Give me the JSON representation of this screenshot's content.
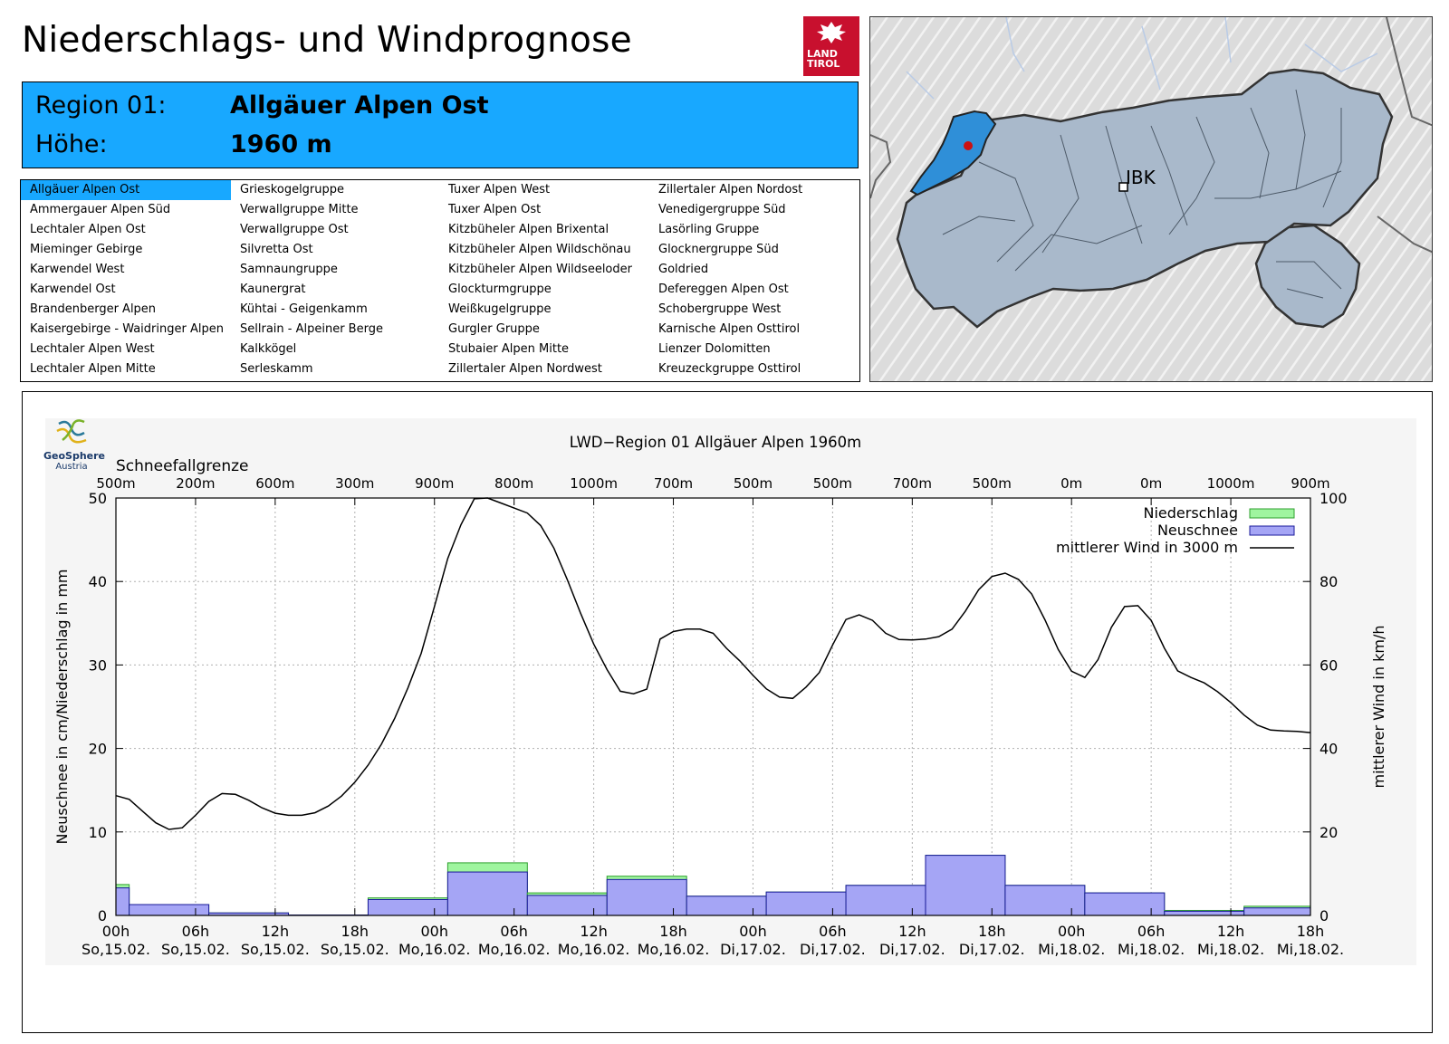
{
  "header": {
    "title": "Niederschlags- und Windprognose",
    "logo_text_1": "LAND",
    "logo_text_2": "TIROL"
  },
  "region_info": {
    "region_label": "Region 01:",
    "region_name": "Allgäuer Alpen Ost",
    "height_label": "Höhe:",
    "height_value": "1960 m"
  },
  "region_list": {
    "selected": "Allgäuer Alpen Ost",
    "columns": [
      [
        "Allgäuer Alpen Ost",
        "Ammergauer Alpen Süd",
        "Lechtaler Alpen Ost",
        "Mieminger Gebirge",
        "Karwendel West",
        "Karwendel Ost",
        "Brandenberger Alpen",
        "Kaisergebirge - Waidringer Alpen",
        "Lechtaler Alpen West",
        "Lechtaler Alpen Mitte"
      ],
      [
        "Grieskogelgruppe",
        "Verwallgruppe Mitte",
        "Verwallgruppe Ost",
        "Silvretta Ost",
        "Samnaungruppe",
        "Kaunergrat",
        "Kühtai - Geigenkamm",
        "Sellrain - Alpeiner Berge",
        "Kalkkögel",
        "Serleskamm"
      ],
      [
        "Tuxer Alpen West",
        "Tuxer Alpen Ost",
        "Kitzbüheler Alpen Brixental",
        "Kitzbüheler Alpen Wildschönau",
        "Kitzbüheler Alpen Wildseeloder",
        "Glockturmgruppe",
        "Weißkugelgruppe",
        "Gurgler Gruppe",
        "Stubaier Alpen Mitte",
        "Zillertaler Alpen Nordwest"
      ],
      [
        "Zillertaler Alpen Nordost",
        "Venedigergruppe Süd",
        "Lasörling Gruppe",
        "Glocknergruppe Süd",
        "Goldried",
        "Defereggen Alpen Ost",
        "Schobergruppe West",
        "Karnische Alpen Osttirol",
        "Lienzer Dolomitten",
        "Kreuzeckgruppe Osttirol"
      ]
    ]
  },
  "map": {
    "city_label": "IBK"
  },
  "branding": {
    "name": "GeoSphere",
    "sub": "Austria"
  },
  "colors": {
    "highlight": "#18a8ff",
    "niederschlag": "#9ff59f",
    "neuschnee": "#a5a5f5",
    "wind": "#000000",
    "logo_red": "#c8102e"
  },
  "chart_data": {
    "type": "bar",
    "title": "LWD−Region 01 Allgäuer Alpen 1960m",
    "ylabel": "Neuschnee in cm/Niederschlag in mm",
    "y2label": "mittlerer Wind in km/h",
    "ylim": [
      0,
      50
    ],
    "y2lim": [
      0,
      100
    ],
    "yticks": [
      0,
      10,
      20,
      30,
      40,
      50
    ],
    "y2ticks": [
      0,
      20,
      40,
      60,
      80,
      100
    ],
    "x_hours": [
      0,
      6,
      12,
      18,
      24,
      30,
      36,
      42,
      48,
      54,
      60,
      66,
      72,
      78,
      84,
      90
    ],
    "x_labels": [
      [
        "00h",
        "So,15.02."
      ],
      [
        "06h",
        "So,15.02."
      ],
      [
        "12h",
        "So,15.02."
      ],
      [
        "18h",
        "So,15.02."
      ],
      [
        "00h",
        "Mo,16.02."
      ],
      [
        "06h",
        "Mo,16.02."
      ],
      [
        "12h",
        "Mo,16.02."
      ],
      [
        "18h",
        "Mo,16.02."
      ],
      [
        "00h",
        "Di,17.02."
      ],
      [
        "06h",
        "Di,17.02."
      ],
      [
        "12h",
        "Di,17.02."
      ],
      [
        "18h",
        "Di,17.02."
      ],
      [
        "00h",
        "Mi,18.02."
      ],
      [
        "06h",
        "Mi,18.02."
      ],
      [
        "12h",
        "Mi,18.02."
      ],
      [
        "18h",
        "Mi,18.02."
      ]
    ],
    "snowline_title": "Schneefallgrenze",
    "snowline_hours": [
      0,
      6,
      12,
      18,
      24,
      30,
      36,
      42,
      48,
      54,
      60,
      66,
      72,
      78,
      84,
      90
    ],
    "snowline_labels": [
      "500m",
      "200m",
      "600m",
      "300m",
      "900m",
      "800m",
      "1000m",
      "700m",
      "500m",
      "500m",
      "700m",
      "500m",
      "0m",
      "0m",
      "1000m",
      "900m"
    ],
    "legend": {
      "niederschlag": "Niederschlag",
      "neuschnee": "Neuschnee",
      "wind": "mittlerer Wind in 3000 m"
    },
    "precip_bars": [
      {
        "start": 0,
        "end": 1,
        "niederschlag": 3.7,
        "neuschnee": 3.3
      },
      {
        "start": 1,
        "end": 7,
        "niederschlag": 1.3,
        "neuschnee": 1.3
      },
      {
        "start": 7,
        "end": 13,
        "niederschlag": 0.3,
        "neuschnee": 0.3
      },
      {
        "start": 13,
        "end": 19,
        "niederschlag": 0.05,
        "neuschnee": 0.05
      },
      {
        "start": 19,
        "end": 25,
        "niederschlag": 2.1,
        "neuschnee": 1.9
      },
      {
        "start": 25,
        "end": 31,
        "niederschlag": 6.3,
        "neuschnee": 5.2
      },
      {
        "start": 31,
        "end": 37,
        "niederschlag": 2.7,
        "neuschnee": 2.4
      },
      {
        "start": 37,
        "end": 43,
        "niederschlag": 4.7,
        "neuschnee": 4.3
      },
      {
        "start": 43,
        "end": 49,
        "niederschlag": 2.3,
        "neuschnee": 2.3
      },
      {
        "start": 49,
        "end": 55,
        "niederschlag": 2.8,
        "neuschnee": 2.8
      },
      {
        "start": 55,
        "end": 61,
        "niederschlag": 3.6,
        "neuschnee": 3.6
      },
      {
        "start": 61,
        "end": 67,
        "niederschlag": 7.2,
        "neuschnee": 7.2
      },
      {
        "start": 67,
        "end": 73,
        "niederschlag": 3.6,
        "neuschnee": 3.6
      },
      {
        "start": 73,
        "end": 79,
        "niederschlag": 2.7,
        "neuschnee": 2.7
      },
      {
        "start": 79,
        "end": 85,
        "niederschlag": 0.6,
        "neuschnee": 0.5
      },
      {
        "start": 85,
        "end": 90,
        "niederschlag": 1.1,
        "neuschnee": 0.9
      }
    ],
    "wind_hours": [
      0,
      1,
      2,
      3,
      4,
      5,
      6,
      7,
      8,
      9,
      10,
      11,
      12,
      13,
      14,
      15,
      16,
      17,
      18,
      19,
      20,
      21,
      22,
      23,
      24,
      25,
      26,
      27,
      28,
      29,
      30,
      31,
      32,
      33,
      34,
      35,
      36,
      37,
      38,
      39,
      40,
      41,
      42,
      43,
      44,
      45,
      46,
      47,
      48,
      49,
      50,
      51,
      52,
      53,
      54,
      55,
      56,
      57,
      58,
      59,
      60,
      61,
      62,
      63,
      64,
      65,
      66,
      67,
      68,
      69,
      70,
      71,
      72,
      73,
      74,
      75,
      76,
      77,
      78,
      79,
      80,
      81,
      82,
      83,
      84,
      85,
      86,
      87,
      88,
      89,
      90
    ],
    "wind_values": [
      28.7,
      27.8,
      25.0,
      22.2,
      20.6,
      21.0,
      24.0,
      27.3,
      29.2,
      29.0,
      27.6,
      25.8,
      24.5,
      24.0,
      24.0,
      24.6,
      26.2,
      28.6,
      31.9,
      36.0,
      41.0,
      47.2,
      54.5,
      62.8,
      74.0,
      85.5,
      93.6,
      99.8,
      100,
      98.8,
      97.6,
      96.4,
      93.4,
      88.0,
      80.5,
      72.5,
      65.0,
      58.9,
      53.7,
      53.1,
      54.2,
      66.2,
      68.0,
      68.6,
      68.6,
      67.6,
      64.0,
      61.0,
      57.5,
      54.3,
      52.3,
      52.0,
      54.7,
      58.2,
      64.8,
      70.9,
      72.0,
      70.7,
      67.6,
      66.1,
      66.0,
      66.2,
      66.8,
      68.6,
      72.9,
      78.0,
      81.2,
      82.0,
      80.5,
      77.0,
      70.8,
      63.7,
      58.5,
      57.0,
      61.3,
      69.0,
      74.0,
      74.2,
      70.7,
      64.0,
      58.6,
      57.0,
      55.7,
      53.6,
      51.0,
      48.0,
      45.6,
      44.4,
      44.2,
      44.1,
      43.8
    ]
  }
}
